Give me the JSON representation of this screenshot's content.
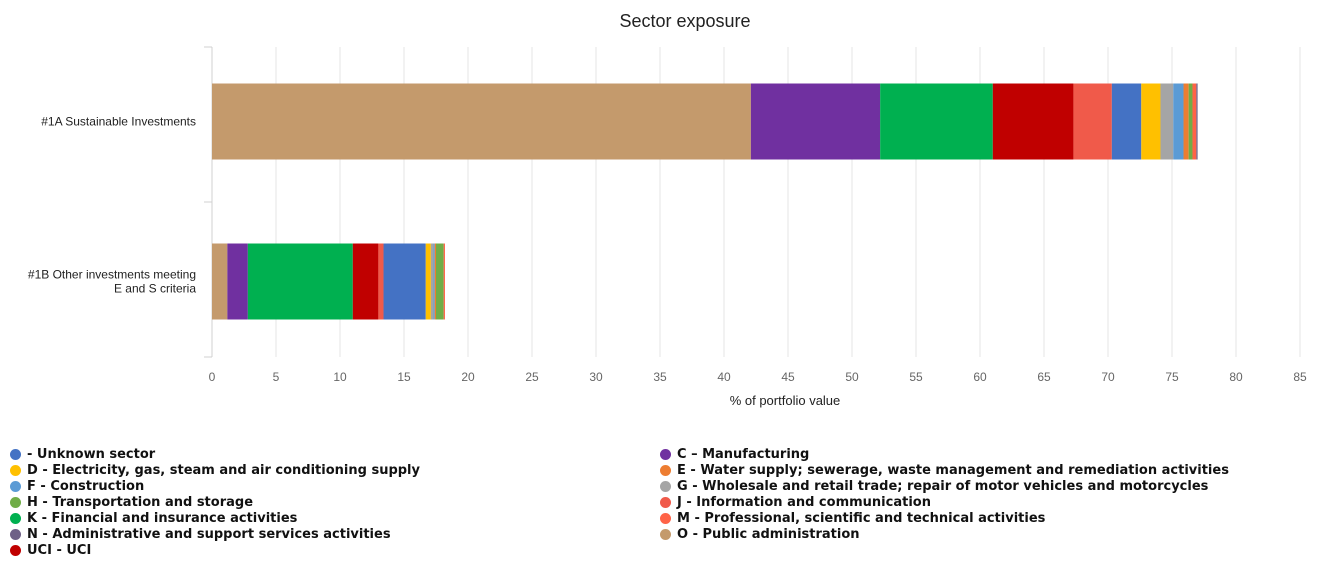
{
  "chart_data": {
    "type": "bar",
    "orientation": "horizontal",
    "stacked": true,
    "title": "Sector exposure",
    "xlabel": "% of portfolio value",
    "ylabel": "",
    "xlim": [
      0,
      85
    ],
    "xticks": [
      0,
      5,
      10,
      15,
      20,
      25,
      30,
      35,
      40,
      45,
      50,
      55,
      60,
      65,
      70,
      75,
      80,
      85
    ],
    "grid": true,
    "legend_position": "bottom",
    "categories": [
      "#1A Sustainable Investments",
      "#1B Other investments meeting E and S criteria"
    ],
    "category_label_lines": [
      [
        "#1A Sustainable Investments"
      ],
      [
        "#1B Other investments meeting",
        "E and S criteria"
      ]
    ],
    "series": [
      {
        "name": "O - Public administration",
        "color": "#c49a6c",
        "values": [
          42.1,
          1.2
        ]
      },
      {
        "name": "C – Manufacturing",
        "color": "#7030a0",
        "values": [
          10.1,
          1.6
        ]
      },
      {
        "name": "K - Financial and insurance activities",
        "color": "#00b050",
        "values": [
          8.8,
          8.2
        ]
      },
      {
        "name": "UCI - UCI",
        "color": "#c00000",
        "values": [
          6.3,
          2.0
        ]
      },
      {
        "name": "J - Information and communication",
        "color": "#f05a4a",
        "values": [
          3.0,
          0.4
        ]
      },
      {
        "name": " - Unknown sector",
        "color": "#4472c4",
        "values": [
          2.3,
          3.3
        ]
      },
      {
        "name": "D - Electricity, gas, steam and air conditioning supply",
        "color": "#ffc000",
        "values": [
          1.5,
          0.4
        ]
      },
      {
        "name": "G - Wholesale and retail trade; repair of motor vehicles and motorcycles",
        "color": "#a5a5a5",
        "values": [
          1.0,
          0.2
        ]
      },
      {
        "name": "F - Construction",
        "color": "#5b9bd5",
        "values": [
          0.8,
          0.1
        ]
      },
      {
        "name": "E - Water supply; sewerage, waste management and remediation activities",
        "color": "#ed7d31",
        "values": [
          0.4,
          0.1
        ]
      },
      {
        "name": "H - Transportation and storage",
        "color": "#70ad47",
        "values": [
          0.3,
          0.6
        ]
      },
      {
        "name": "M - Professional, scientific and technical activities",
        "color": "#ff6347",
        "values": [
          0.3,
          0.1
        ]
      },
      {
        "name": "N - Administrative and support services activities",
        "color": "#6e6087",
        "values": [
          0.1,
          0.0
        ]
      }
    ]
  },
  "legend": {
    "items": [
      {
        "label": " - Unknown sector",
        "color": "#4472c4"
      },
      {
        "label": "D - Electricity, gas, steam and air conditioning supply",
        "color": "#ffc000"
      },
      {
        "label": "F - Construction",
        "color": "#5b9bd5"
      },
      {
        "label": "H - Transportation and storage",
        "color": "#70ad47"
      },
      {
        "label": "K - Financial and insurance activities",
        "color": "#00b050"
      },
      {
        "label": "N - Administrative and support services activities",
        "color": "#6e6087"
      },
      {
        "label": "UCI - UCI",
        "color": "#c00000"
      },
      {
        "label": "C – Manufacturing",
        "color": "#7030a0"
      },
      {
        "label": "E - Water supply; sewerage, waste management and remediation activities",
        "color": "#ed7d31"
      },
      {
        "label": "G - Wholesale and retail trade; repair of motor vehicles and motorcycles",
        "color": "#a5a5a5"
      },
      {
        "label": "J - Information and communication",
        "color": "#f05a4a"
      },
      {
        "label": "M - Professional, scientific and technical activities",
        "color": "#ff6347"
      },
      {
        "label": "O - Public administration",
        "color": "#c49a6c"
      }
    ]
  }
}
